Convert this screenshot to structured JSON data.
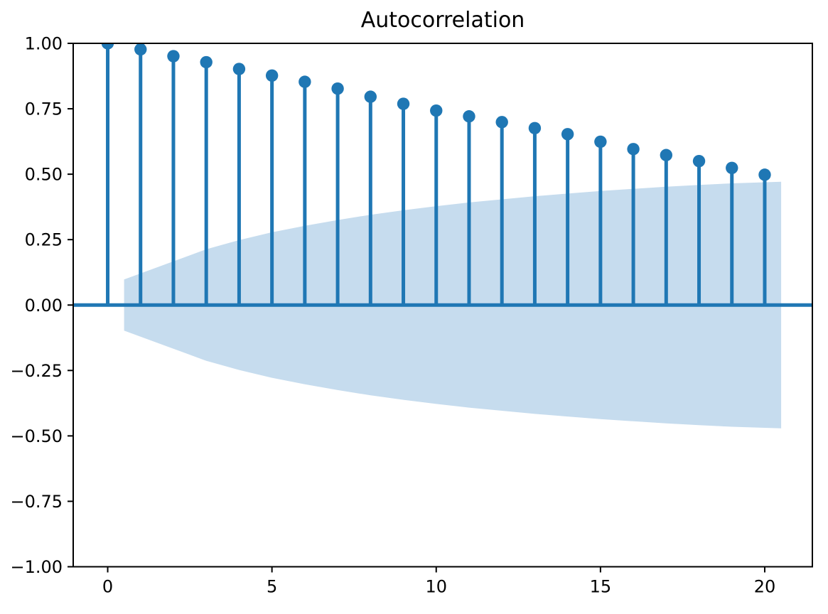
{
  "figure": {
    "background": "#ffffff",
    "accent_color": "#1f77b4",
    "band_color": "#c6dcee",
    "spine_color": "#000000",
    "text_color": "#000000"
  },
  "chart_data": {
    "type": "stem",
    "title": "Autocorrelation",
    "xlabel": "",
    "ylabel": "",
    "grid": false,
    "legend": null,
    "xlim": [
      -1.05,
      21.45
    ],
    "ylim": [
      -1.0,
      1.0
    ],
    "x": [
      0,
      1,
      2,
      3,
      4,
      5,
      6,
      7,
      8,
      9,
      10,
      11,
      12,
      13,
      14,
      15,
      16,
      17,
      18,
      19,
      20
    ],
    "values": [
      1.0,
      0.977,
      0.951,
      0.928,
      0.902,
      0.877,
      0.853,
      0.827,
      0.796,
      0.769,
      0.743,
      0.721,
      0.699,
      0.676,
      0.653,
      0.624,
      0.596,
      0.573,
      0.55,
      0.524,
      0.498
    ],
    "confidence_band": {
      "x": [
        0.5,
        2,
        3,
        4,
        5,
        6,
        7,
        8,
        9,
        10,
        11,
        12,
        13,
        14,
        15,
        16,
        17,
        18,
        19,
        20.5
      ],
      "upper": [
        0.098,
        0.167,
        0.213,
        0.248,
        0.278,
        0.303,
        0.325,
        0.345,
        0.362,
        0.378,
        0.392,
        0.404,
        0.416,
        0.426,
        0.436,
        0.444,
        0.452,
        0.459,
        0.465,
        0.471
      ],
      "lower": [
        -0.098,
        -0.167,
        -0.213,
        -0.248,
        -0.278,
        -0.303,
        -0.325,
        -0.345,
        -0.362,
        -0.378,
        -0.392,
        -0.404,
        -0.416,
        -0.426,
        -0.436,
        -0.444,
        -0.452,
        -0.459,
        -0.465,
        -0.471
      ]
    },
    "xticks": [
      {
        "v": 0,
        "label": "0"
      },
      {
        "v": 5,
        "label": "5"
      },
      {
        "v": 10,
        "label": "10"
      },
      {
        "v": 15,
        "label": "15"
      },
      {
        "v": 20,
        "label": "20"
      }
    ],
    "yticks": [
      {
        "v": 1.0,
        "label": "1.00"
      },
      {
        "v": 0.75,
        "label": "0.75"
      },
      {
        "v": 0.5,
        "label": "0.50"
      },
      {
        "v": 0.25,
        "label": "0.25"
      },
      {
        "v": 0.0,
        "label": "0.00"
      },
      {
        "v": -0.25,
        "label": "−0.25"
      },
      {
        "v": -0.5,
        "label": "−0.50"
      },
      {
        "v": -0.75,
        "label": "−0.75"
      },
      {
        "v": -1.0,
        "label": "−1.00"
      }
    ]
  }
}
